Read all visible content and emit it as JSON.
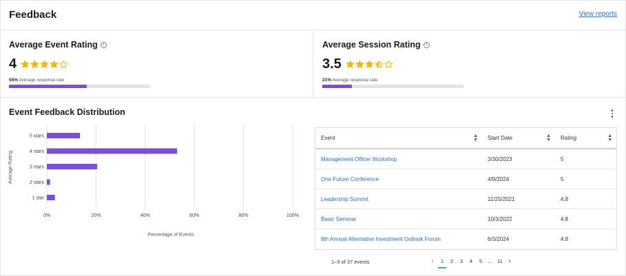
{
  "header": {
    "title": "Feedback",
    "view_reports": "View reports"
  },
  "kpis": [
    {
      "title": "Average Event Rating",
      "value": "4",
      "rating": 4,
      "response_pct": "55%",
      "response_label": "Average response rate",
      "response_fraction": 0.55
    },
    {
      "title": "Average Session Rating",
      "value": "3.5",
      "rating": 3.5,
      "response_pct": "21%",
      "response_label": "Average response rate",
      "response_fraction": 0.21
    }
  ],
  "colors": {
    "accent": "#7d4ed8",
    "star": "#f2b705",
    "link": "#2b6cd6",
    "active_page": "#1bbf8a"
  },
  "distribution": {
    "title": "Event Feedback Distribution"
  },
  "chart_data": {
    "type": "bar",
    "orientation": "horizontal",
    "categories": [
      "5 stars",
      "4 stars",
      "3 stars",
      "2 stars",
      "1 star"
    ],
    "values": [
      13.5,
      53,
      20.5,
      1.3,
      3.3
    ],
    "xlabel": "Percentage of Events",
    "ylabel": "Average Rating",
    "xlim": [
      0,
      100
    ],
    "xticks": [
      "0%",
      "20%",
      "40%",
      "60%",
      "80%",
      "100%"
    ],
    "grid": true
  },
  "table": {
    "columns": [
      "Event",
      "Start Date",
      "Rating"
    ],
    "rows": [
      {
        "event": "Management Officer Workshop",
        "date": "3/30/2023",
        "rating": "5"
      },
      {
        "event": "One Future Conference",
        "date": "4/9/2024",
        "rating": "5"
      },
      {
        "event": "Leadership Summit",
        "date": "11/25/2021",
        "rating": "4.8"
      },
      {
        "event": "Basic Seminar",
        "date": "10/3/2022",
        "rating": "4.8"
      },
      {
        "event": "8th Annual Alternative Investment Outlook Forum",
        "date": "6/3/2024",
        "rating": "4.8"
      }
    ]
  },
  "pagination": {
    "summary": "1–5 of 37 events",
    "pages": [
      "1",
      "2",
      "3",
      "4",
      "5",
      "…",
      "11"
    ],
    "active": "1"
  },
  "icons": {
    "info": "info-icon",
    "star": "star-icon",
    "kebab": "more-vertical-icon",
    "sort": "sort-icon",
    "prev": "chevron-left-icon",
    "next": "chevron-right-icon"
  }
}
